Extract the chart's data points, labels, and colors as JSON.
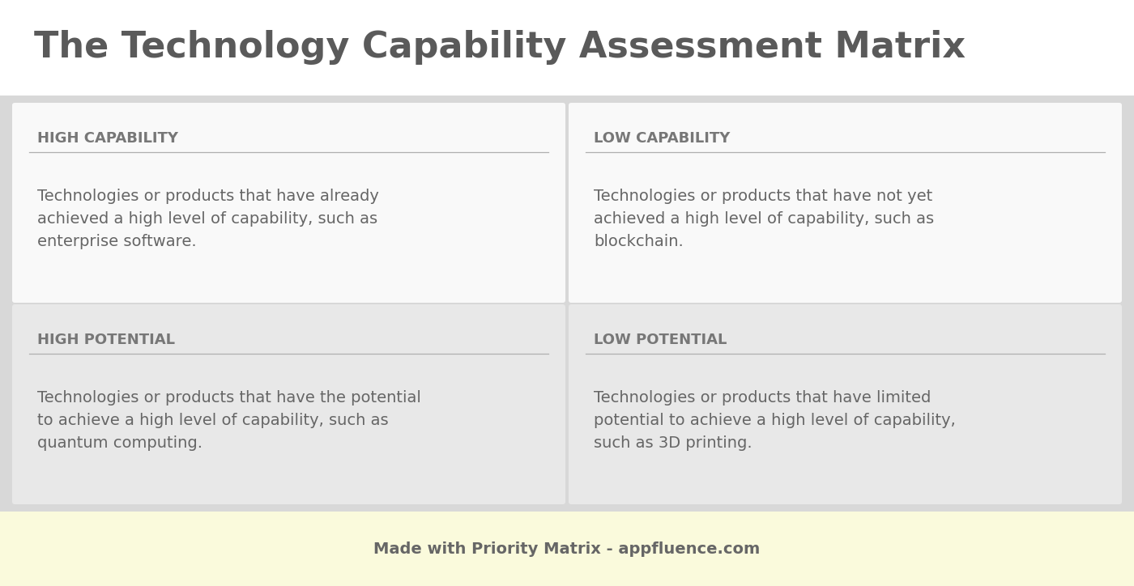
{
  "title": "The Technology Capability Assessment Matrix",
  "title_fontsize": 32,
  "title_color": "#5a5a5a",
  "title_fontweight": "bold",
  "background_color": "#ffffff",
  "matrix_bg": "#e0e0e0",
  "footer_bg": "#fafadc",
  "footer_text": "Made with Priority Matrix - appfluence.com",
  "footer_fontsize": 14,
  "footer_color": "#666666",
  "divider_color": "#b0b0b0",
  "quadrants": [
    {
      "label": "HIGH CAPABILITY",
      "label_fontsize": 13,
      "label_color": "#777777",
      "label_fontweight": "bold",
      "description": "Technologies or products that have already\nachieved a high level of capability, such as\nenterprise software.",
      "desc_fontsize": 14,
      "desc_color": "#666666",
      "bg_color": "#f9f9f9",
      "position": "top-left"
    },
    {
      "label": "LOW CAPABILITY",
      "label_fontsize": 13,
      "label_color": "#777777",
      "label_fontweight": "bold",
      "description": "Technologies or products that have not yet\nachieved a high level of capability, such as\nblockchain.",
      "desc_fontsize": 14,
      "desc_color": "#666666",
      "bg_color": "#f9f9f9",
      "position": "top-right"
    },
    {
      "label": "HIGH POTENTIAL",
      "label_fontsize": 13,
      "label_color": "#777777",
      "label_fontweight": "bold",
      "description": "Technologies or products that have the potential\nto achieve a high level of capability, such as\nquantum computing.",
      "desc_fontsize": 14,
      "desc_color": "#666666",
      "bg_color": "#e8e8e8",
      "position": "bottom-left"
    },
    {
      "label": "LOW POTENTIAL",
      "label_fontsize": 13,
      "label_color": "#777777",
      "label_fontweight": "bold",
      "description": "Technologies or products that have limited\npotential to achieve a high level of capability,\nsuch as 3D printing.",
      "desc_fontsize": 14,
      "desc_color": "#666666",
      "bg_color": "#e8e8e8",
      "position": "bottom-right"
    }
  ]
}
